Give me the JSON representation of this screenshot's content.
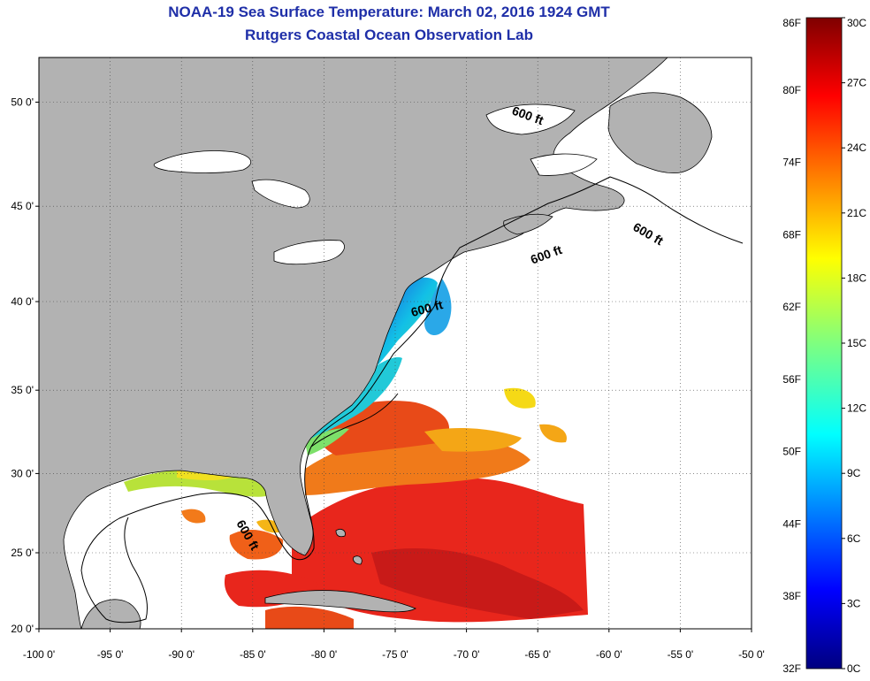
{
  "title": {
    "line1": "NOAA-19 Sea Surface Temperature:  March 02, 2016 1924 GMT",
    "line2": "Rutgers Coastal Ocean Observation Lab"
  },
  "colors": {
    "title": "#1f2fa8",
    "land": "#b2b2b2",
    "cloud_or_nodata": "#ffffff",
    "coast": "#000000"
  },
  "map": {
    "lon_range": [
      -100,
      -50
    ],
    "lat_range": [
      20,
      52
    ],
    "lat_ticks": [
      {
        "value": 50,
        "label": "50 0'"
      },
      {
        "value": 45,
        "label": "45 0'"
      },
      {
        "value": 40,
        "label": "40 0'"
      },
      {
        "value": 35,
        "label": "35 0'"
      },
      {
        "value": 30,
        "label": "30 0'"
      },
      {
        "value": 25,
        "label": "25 0'"
      },
      {
        "value": 20,
        "label": "20 0'"
      }
    ],
    "lon_ticks": [
      {
        "value": -100,
        "label": "-100 0'"
      },
      {
        "value": -95,
        "label": "-95 0'"
      },
      {
        "value": -90,
        "label": "-90 0'"
      },
      {
        "value": -85,
        "label": "-85 0'"
      },
      {
        "value": -80,
        "label": "-80 0'"
      },
      {
        "value": -75,
        "label": "-75 0'"
      },
      {
        "value": -70,
        "label": "-70 0'"
      },
      {
        "value": -65,
        "label": "-65 0'"
      },
      {
        "value": -60,
        "label": "-60 0'"
      },
      {
        "value": -55,
        "label": "-55 0'"
      },
      {
        "value": -50,
        "label": "-50 0'"
      }
    ],
    "contour_labels": [
      {
        "text": "600 ft",
        "lon": -65.8,
        "lat": 49.2,
        "rotate": 20
      },
      {
        "text": "600 ft",
        "lon": -57.4,
        "lat": 43.4,
        "rotate": 30
      },
      {
        "text": "600 ft",
        "lon": -64.3,
        "lat": 42.3,
        "rotate": -20
      },
      {
        "text": "600 ft",
        "lon": -72.7,
        "lat": 39.4,
        "rotate": -15
      },
      {
        "text": "600 ft",
        "lon": -85.6,
        "lat": 26.0,
        "rotate": 60
      }
    ],
    "grid": "dotted"
  },
  "colorbar": {
    "left_labels": [
      "86F",
      "80F",
      "74F",
      "68F",
      "62F",
      "56F",
      "50F",
      "44F",
      "38F",
      "32F"
    ],
    "right_labels": [
      "30C",
      "27C",
      "24C",
      "21C",
      "18C",
      "15C",
      "12C",
      "9C",
      "6C",
      "3C",
      "0C"
    ],
    "scale_min_c": 0,
    "scale_max_c": 30
  }
}
